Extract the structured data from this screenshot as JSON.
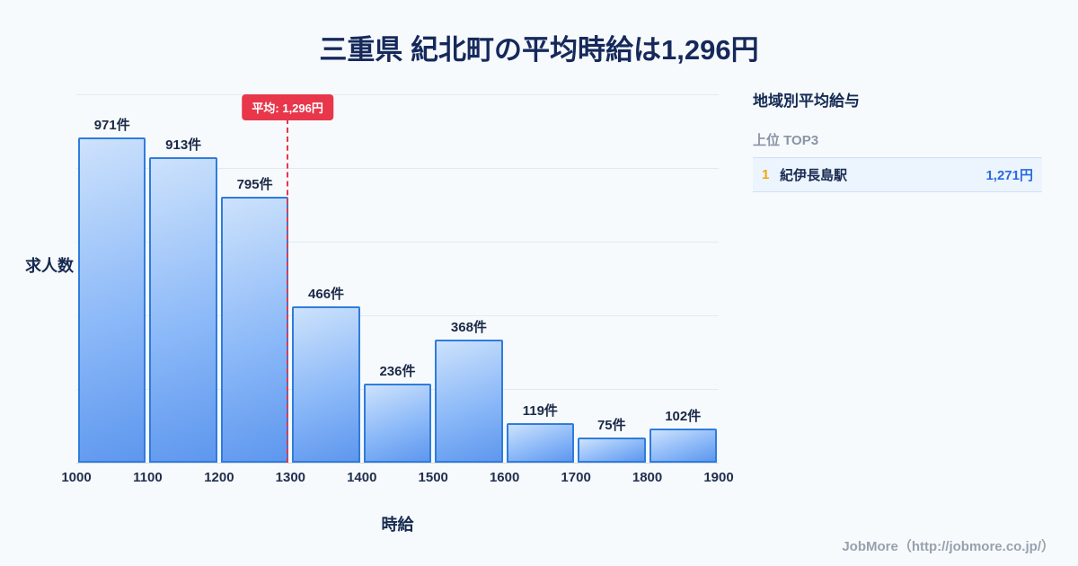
{
  "header": {
    "title": "三重県 紀北町の平均時給は1,296円"
  },
  "chart_data": {
    "type": "bar",
    "title": "三重県 紀北町の平均時給は1,296円",
    "xlabel": "時給",
    "ylabel": "求人数",
    "bin_edges": [
      1000,
      1100,
      1200,
      1300,
      1400,
      1500,
      1600,
      1700,
      1800,
      1900
    ],
    "values": [
      971,
      913,
      795,
      466,
      236,
      368,
      119,
      75,
      102
    ],
    "bar_labels": [
      "971件",
      "913件",
      "795件",
      "466件",
      "236件",
      "368件",
      "119件",
      "75件",
      "102件"
    ],
    "ylim": [
      0,
      1100
    ],
    "grid": true,
    "gridline_count": 5,
    "average_value": 1296,
    "average_label": "平均: 1,296円"
  },
  "ranking": {
    "title": "地域別平均給与",
    "subtitle": "上位 TOP3",
    "items": [
      {
        "rank": "1",
        "name": "紀伊長島駅",
        "value": "1,271円"
      }
    ]
  },
  "footer": {
    "credit": "JobMore（http://jobmore.co.jp/）"
  },
  "colors": {
    "background": "#f7fafd",
    "title_text": "#16295b",
    "bar_fill_top": "#cde2fc",
    "bar_fill_bottom": "#5e97ee",
    "bar_border": "#2f7cdb",
    "average_accent": "#e8374b",
    "rank_number": "#f2a70c",
    "rank_value": "#2a6ae0",
    "rank_row_bg": "#ecf4fd",
    "gridline": "#e4e9f1",
    "footer_text": "#98a1ae"
  }
}
